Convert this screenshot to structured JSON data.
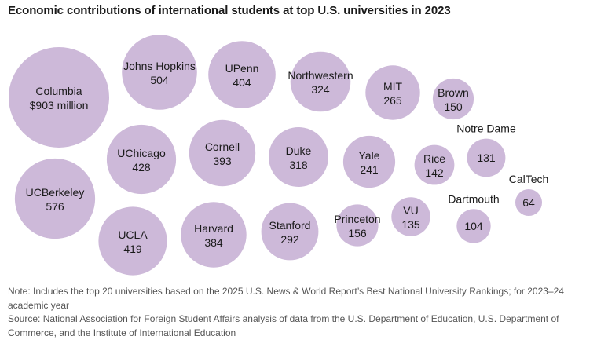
{
  "chart_data": {
    "type": "bubble",
    "title": "Economic contributions of international students at top U.S. universities in 2023",
    "unit": "million",
    "color": "#cdb9d9",
    "series": [
      {
        "name": "Columbia",
        "label": "$903 million",
        "value": 903
      },
      {
        "name": "UCBerkeley",
        "label": "576",
        "value": 576
      },
      {
        "name": "Johns Hopkins",
        "label": "504",
        "value": 504
      },
      {
        "name": "UChicago",
        "label": "428",
        "value": 428
      },
      {
        "name": "UCLA",
        "label": "419",
        "value": 419
      },
      {
        "name": "UPenn",
        "label": "404",
        "value": 404
      },
      {
        "name": "Cornell",
        "label": "393",
        "value": 393
      },
      {
        "name": "Harvard",
        "label": "384",
        "value": 384
      },
      {
        "name": "Northwestern",
        "label": "324",
        "value": 324
      },
      {
        "name": "Duke",
        "label": "318",
        "value": 318
      },
      {
        "name": "Stanford",
        "label": "292",
        "value": 292
      },
      {
        "name": "MIT",
        "label": "265",
        "value": 265
      },
      {
        "name": "Yale",
        "label": "241",
        "value": 241
      },
      {
        "name": "Princeton",
        "label": "156",
        "value": 156
      },
      {
        "name": "Brown",
        "label": "150",
        "value": 150
      },
      {
        "name": "Rice",
        "label": "142",
        "value": 142
      },
      {
        "name": "VU",
        "label": "135",
        "value": 135
      },
      {
        "name": "Notre Dame",
        "label": "131",
        "value": 131
      },
      {
        "name": "Dartmouth",
        "label": "104",
        "value": 104
      },
      {
        "name": "CalTech",
        "label": "64",
        "value": 64
      }
    ]
  },
  "notes": {
    "note": "Note: Includes the top 20 universities based on the 2025 U.S. News & World Report’s Best National University Rankings; for 2023–24 academic year",
    "source": "Source: National Association for Foreign Student Affairs analysis of data from the U.S. Department of Education, U.S. Department of Commerce, and the Institute of International Education"
  }
}
